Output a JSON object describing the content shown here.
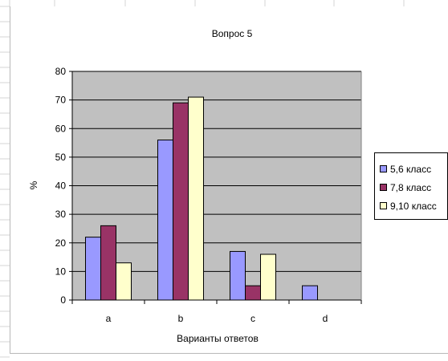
{
  "chart_data": {
    "type": "bar",
    "title": "Вопрос 5",
    "xlabel": "Варианты ответов",
    "ylabel": "%",
    "categories": [
      "a",
      "b",
      "c",
      "d"
    ],
    "series": [
      {
        "name": "5,6 класс",
        "color": "#9999ff",
        "values": [
          22,
          56,
          17,
          5
        ]
      },
      {
        "name": "7,8 класс",
        "color": "#993366",
        "values": [
          26,
          69,
          5,
          0
        ]
      },
      {
        "name": "9,10 класс",
        "color": "#ffffcc",
        "values": [
          13,
          71,
          16,
          0
        ]
      }
    ],
    "ylim": [
      0,
      80
    ],
    "yticks": [
      "0",
      "10",
      "20",
      "30",
      "40",
      "50",
      "60",
      "70",
      "80"
    ],
    "grid": true,
    "plot_background": "#c0c0c0",
    "legend_position": "right"
  }
}
